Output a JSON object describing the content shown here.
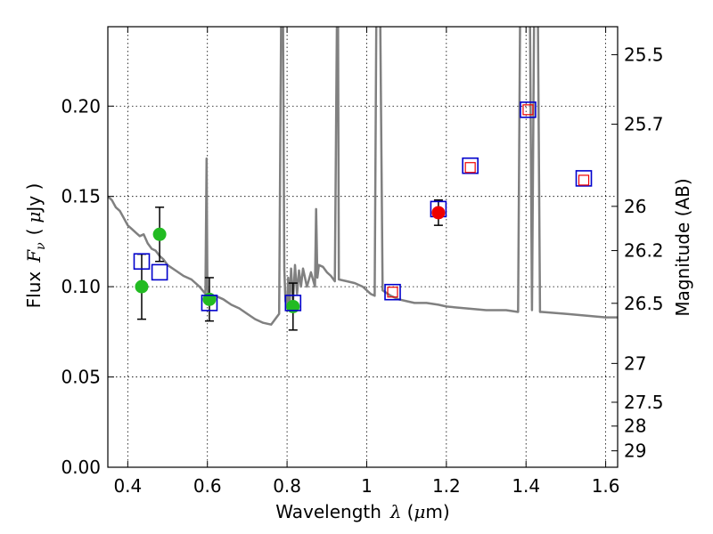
{
  "chart_data": {
    "type": "scatter",
    "xlabel": "Wavelength",
    "xlabel_symbol": "λ",
    "xlabel_unit_open": "(",
    "xlabel_unit_mu": "μ",
    "xlabel_unit_close": "m)",
    "ylabel_prefix": "Flux",
    "ylabel_symbol": "F",
    "ylabel_subscript": "ν",
    "ylabel_unit_open": "(",
    "ylabel_unit_mu": "μ",
    "ylabel_unit_close": "Jy )",
    "ylabel_right": "Magnitude (AB)",
    "xlim": [
      0.35,
      1.63
    ],
    "ylim": [
      0.0,
      0.244
    ],
    "grid": true,
    "xticks": [
      0.4,
      0.6,
      0.8,
      1.0,
      1.2,
      1.4,
      1.6
    ],
    "xtick_labels": [
      "0.4",
      "0.6",
      "0.8",
      "1",
      "1.2",
      "1.4",
      "1.6"
    ],
    "yticks": [
      0.0,
      0.05,
      0.1,
      0.15,
      0.2
    ],
    "ytick_labels": [
      "0.00",
      "0.05",
      "0.10",
      "0.15",
      "0.20"
    ],
    "right_ticks": [
      {
        "label": "25.5",
        "flux": 0.2285
      },
      {
        "label": "25.7",
        "flux": 0.19
      },
      {
        "label": "26",
        "flux": 0.1445
      },
      {
        "label": "26.2",
        "flux": 0.12
      },
      {
        "label": "26.5",
        "flux": 0.0908
      },
      {
        "label": "27",
        "flux": 0.0575
      },
      {
        "label": "27.5",
        "flux": 0.036
      },
      {
        "label": "28",
        "flux": 0.0228
      },
      {
        "label": "29",
        "flux": 0.0091
      }
    ],
    "colors": {
      "model": "#808080",
      "model_squares": "#0000cc",
      "hst_points": "#22bb22",
      "ir_points": "#ee0000",
      "error_bars": "#000000"
    },
    "series": [
      {
        "name": "model spectrum",
        "type": "line",
        "x": [
          0.35,
          0.36,
          0.37,
          0.38,
          0.39,
          0.4,
          0.41,
          0.42,
          0.43,
          0.44,
          0.45,
          0.46,
          0.47,
          0.48,
          0.49,
          0.5,
          0.52,
          0.54,
          0.56,
          0.58,
          0.595,
          0.598,
          0.6,
          0.603,
          0.61,
          0.62,
          0.64,
          0.66,
          0.68,
          0.7,
          0.72,
          0.74,
          0.76,
          0.78,
          0.785,
          0.79,
          0.793,
          0.796,
          0.8,
          0.803,
          0.806,
          0.81,
          0.815,
          0.82,
          0.825,
          0.83,
          0.835,
          0.84,
          0.85,
          0.86,
          0.87,
          0.873,
          0.876,
          0.88,
          0.89,
          0.9,
          0.91,
          0.92,
          0.925,
          0.928,
          0.93,
          0.95,
          0.97,
          0.99,
          1.0,
          1.01,
          1.02,
          1.024,
          1.03,
          1.034,
          1.04,
          1.06,
          1.08,
          1.1,
          1.12,
          1.15,
          1.18,
          1.2,
          1.25,
          1.3,
          1.35,
          1.38,
          1.385,
          1.39,
          1.395,
          1.4,
          1.41,
          1.415,
          1.42,
          1.425,
          1.43,
          1.435,
          1.44,
          1.5,
          1.55,
          1.6,
          1.63
        ],
        "y": [
          0.15,
          0.148,
          0.144,
          0.142,
          0.138,
          0.134,
          0.132,
          0.13,
          0.128,
          0.129,
          0.124,
          0.121,
          0.12,
          0.117,
          0.115,
          0.112,
          0.109,
          0.106,
          0.104,
          0.1,
          0.096,
          0.171,
          0.1,
          0.094,
          0.093,
          0.095,
          0.093,
          0.09,
          0.088,
          0.085,
          0.082,
          0.08,
          0.079,
          0.085,
          0.245,
          0.245,
          0.11,
          0.092,
          0.088,
          0.105,
          0.087,
          0.11,
          0.092,
          0.112,
          0.096,
          0.109,
          0.1,
          0.11,
          0.1,
          0.108,
          0.1,
          0.143,
          0.105,
          0.112,
          0.111,
          0.108,
          0.106,
          0.103,
          0.245,
          0.245,
          0.104,
          0.103,
          0.102,
          0.1,
          0.098,
          0.096,
          0.095,
          0.245,
          0.245,
          0.245,
          0.098,
          0.095,
          0.093,
          0.092,
          0.091,
          0.091,
          0.09,
          0.089,
          0.088,
          0.087,
          0.087,
          0.086,
          0.245,
          0.245,
          0.245,
          0.245,
          0.245,
          0.087,
          0.245,
          0.245,
          0.245,
          0.086,
          0.086,
          0.085,
          0.084,
          0.083,
          0.083
        ]
      },
      {
        "name": "model photometry (blue squares)",
        "type": "scatter",
        "x": [
          0.435,
          0.48,
          0.605,
          0.815,
          1.065,
          1.18,
          1.26,
          1.405,
          1.545
        ],
        "y": [
          0.114,
          0.108,
          0.091,
          0.091,
          0.097,
          0.143,
          0.167,
          0.198,
          0.16
        ]
      },
      {
        "name": "model photometry (red squares)",
        "type": "scatter",
        "x": [
          1.065,
          1.26,
          1.405,
          1.545
        ],
        "y": [
          0.097,
          0.166,
          0.198,
          0.159
        ]
      },
      {
        "name": "HST observations (green)",
        "type": "scatter",
        "x": [
          0.435,
          0.48,
          0.605,
          0.815
        ],
        "y": [
          0.1,
          0.129,
          0.093,
          0.089
        ],
        "err": [
          0.018,
          0.015,
          0.012,
          0.013
        ]
      },
      {
        "name": "IR observation (red)",
        "type": "scatter",
        "x": [
          1.18
        ],
        "y": [
          0.141
        ],
        "err": [
          0.007
        ]
      }
    ]
  }
}
